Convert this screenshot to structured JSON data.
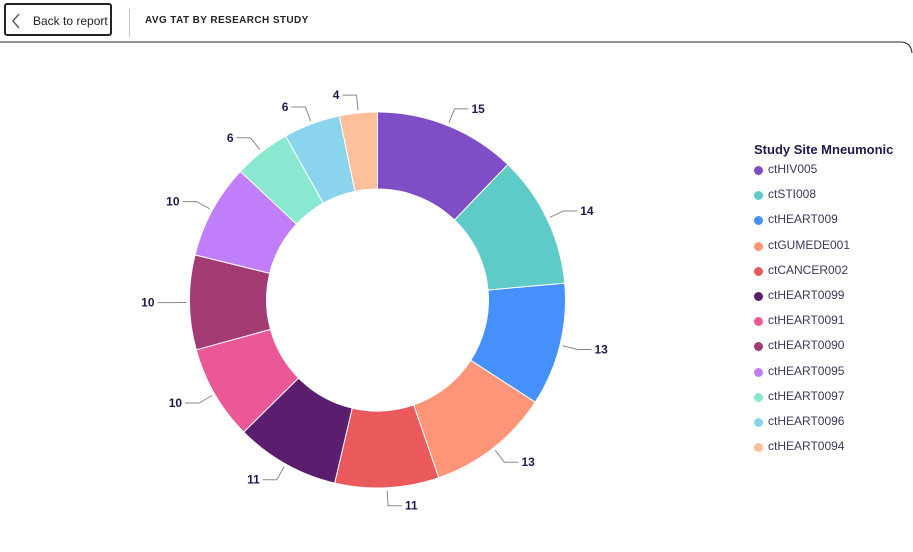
{
  "toolbar": {
    "back_label": "Back to report"
  },
  "page_title": "AVG TAT BY RESEARCH STUDY",
  "legend": {
    "title": "Study Site Mneumonic"
  },
  "chart_data": {
    "type": "donut",
    "title": "",
    "legend_title": "Study Site Mneumonic",
    "legend_position": "right",
    "slices": [
      {
        "label": "ctHIV005",
        "value": 15,
        "color": "#7f4dc6"
      },
      {
        "label": "ctSTI008",
        "value": 14,
        "color": "#5ecbc8"
      },
      {
        "label": "ctHEART009",
        "value": 13,
        "color": "#4590fa"
      },
      {
        "label": "ctGUMEDE001",
        "value": 13,
        "color": "#fe9578"
      },
      {
        "label": "ctCANCER002",
        "value": 11,
        "color": "#ea5a5c"
      },
      {
        "label": "ctHEART0099",
        "value": 11,
        "color": "#5b1e6e"
      },
      {
        "label": "ctHEART0091",
        "value": 10,
        "color": "#eb5898"
      },
      {
        "label": "ctHEART0090",
        "value": 10,
        "color": "#a33a72"
      },
      {
        "label": "ctHEART0095",
        "value": 10,
        "color": "#c17efa"
      },
      {
        "label": "ctHEART0097",
        "value": 6,
        "color": "#8ae8d1"
      },
      {
        "label": "ctHEART0096",
        "value": 6,
        "color": "#8ad5ed"
      },
      {
        "label": "ctHEART0094",
        "value": 4,
        "color": "#fec09b"
      }
    ]
  }
}
